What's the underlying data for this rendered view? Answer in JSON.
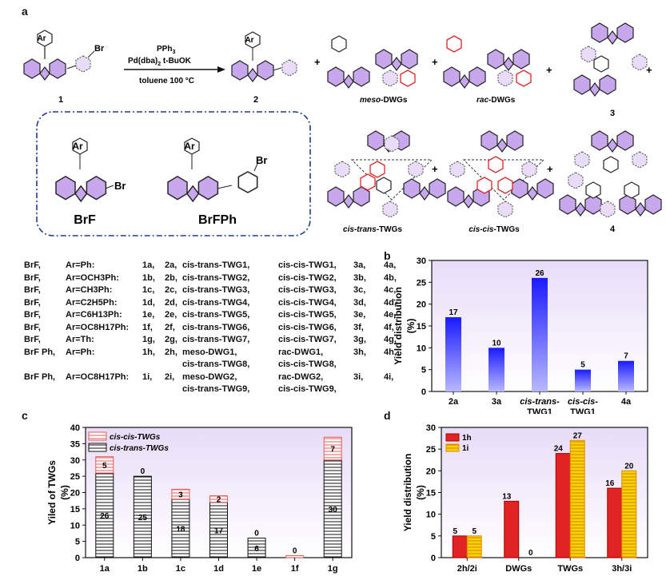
{
  "panel_labels": {
    "a": "a",
    "b": "b",
    "c": "c",
    "d": "d"
  },
  "scheme": {
    "compound_1": "1",
    "compound_2": "2",
    "compound_3": "3",
    "compound_4": "4",
    "reagent_line1": "PPh",
    "reagent_line1_sub": "3",
    "reagent_line2_a": "Pd(dba)",
    "reagent_line2_sub": "2",
    "reagent_line2_b": " t-BuOK",
    "reagent_line3": "toluene 100 °C",
    "ar_label": "Ar",
    "br_label": "Br",
    "plus": "+",
    "meso_dwgs_prefix": "meso",
    "meso_dwgs_suffix": "-DWGs",
    "rac_dwgs_prefix": "rac",
    "rac_dwgs_suffix": "-DWGs",
    "cis_trans_twgs_prefix": "cis-trans",
    "cis_trans_twgs_suffix": "-TWGs",
    "cis_cis_twgs_prefix": "cis-cis",
    "cis_cis_twgs_suffix": "-TWGs",
    "brf": "BrF",
    "brfph": "BrFPh"
  },
  "table_rows": [
    {
      "prefix": "BrF,",
      "ar": "Ar=Ph:",
      "c1": "1a,",
      "c2": "2a,",
      "c3": "cis-trans-TWG1,",
      "c4": "cis-cis-TWG1,",
      "c5": "3a,",
      "c6": "4a,"
    },
    {
      "prefix": "BrF,",
      "ar": "Ar=OCH3Ph:",
      "c1": "1b,",
      "c2": "2b,",
      "c3": "cis-trans-TWG2,",
      "c4": "cis-cis-TWG2,",
      "c5": "3b,",
      "c6": "4b,"
    },
    {
      "prefix": "BrF,",
      "ar": "Ar=CH3Ph:",
      "c1": "1c,",
      "c2": "2c,",
      "c3": "cis-trans-TWG3,",
      "c4": "cis-cis-TWG3,",
      "c5": "3c,",
      "c6": "4c,"
    },
    {
      "prefix": "BrF,",
      "ar": "Ar=C2H5Ph:",
      "c1": "1d,",
      "c2": "2d,",
      "c3": "cis-trans-TWG4,",
      "c4": "cis-cis-TWG4,",
      "c5": "3d,",
      "c6": "4d,"
    },
    {
      "prefix": "BrF,",
      "ar": "Ar=C6H13Ph:",
      "c1": "1e,",
      "c2": "2e,",
      "c3": "cis-trans-TWG5,",
      "c4": "cis-cis-TWG5,",
      "c5": "3e,",
      "c6": "4e,"
    },
    {
      "prefix": "BrF,",
      "ar": "Ar=OC8H17Ph:",
      "c1": "1f,",
      "c2": "2f,",
      "c3": "cis-trans-TWG6,",
      "c4": "cis-cis-TWG6,",
      "c5": "3f,",
      "c6": "4f,"
    },
    {
      "prefix": "BrF,",
      "ar": "Ar=Th:",
      "c1": "1g,",
      "c2": "2g,",
      "c3": "cis-trans-TWG7,",
      "c4": "cis-cis-TWG7,",
      "c5": "3g,",
      "c6": "4g,"
    },
    {
      "prefix": "BrF Ph,",
      "ar": "Ar=Ph:",
      "c1": "1h,",
      "c2": "2h,",
      "c3": "meso-DWG1,",
      "c4": "rac-DWG1,",
      "c5": "3h,",
      "c6": "4h,",
      "sub3": "cis-trans-TWG8,",
      "sub4": "cis-cis-TWG8,"
    },
    {
      "prefix": "BrF Ph,",
      "ar": "Ar=OC8H17Ph:",
      "c1": "1i,",
      "c2": "2i,",
      "c3": "meso-DWG2,",
      "c4": "rac-DWG2,",
      "c5": "3i,",
      "c6": "4i,",
      "sub3": "cis-trans-TWG9,",
      "sub4": "cis-cis-TWG9,"
    }
  ],
  "chart_data": [
    {
      "type": "bar",
      "panel": "b",
      "ylabel": "Yield distribution (%)",
      "ylabel_line1": "Yield distribution",
      "ylabel_line2": "(%)",
      "ylim": [
        0,
        30
      ],
      "yticks": [
        "0",
        "5",
        "10",
        "15",
        "20",
        "25",
        "30"
      ],
      "categories": [
        "2a",
        "3a",
        "cis-trans-TWG1",
        "cis-cis-TWG1",
        "4a"
      ],
      "cat_line1": [
        "2a",
        "3a",
        "cis-trans-",
        "cis-cis-",
        "4a"
      ],
      "cat_line2": [
        "",
        "",
        "TWG1",
        "TWG1",
        ""
      ],
      "values": [
        17,
        10,
        26,
        5,
        7
      ],
      "value_labels": [
        "17",
        "10",
        "26",
        "5",
        "7"
      ]
    },
    {
      "type": "bar",
      "panel": "c",
      "stacked": true,
      "ylabel": "Yiled of TWGs (%)",
      "ylabel_line1": "Yiled of TWGs",
      "ylabel_line2": "(%)",
      "ylim": [
        0,
        40
      ],
      "yticks": [
        "0",
        "5",
        "10",
        "15",
        "20",
        "25",
        "30",
        "35",
        "40"
      ],
      "categories": [
        "1a",
        "1b",
        "1c",
        "1d",
        "1e",
        "1f",
        "1g"
      ],
      "legend": [
        "cis-cis-TWGs",
        "cis-trans-TWGs"
      ],
      "series": [
        {
          "name": "cis-trans-TWGs",
          "values": [
            26,
            25,
            18,
            17,
            6,
            0,
            30
          ],
          "labels": [
            "26",
            "25",
            "18",
            "17",
            "6",
            "",
            "30"
          ]
        },
        {
          "name": "cis-cis-TWGs",
          "values": [
            5,
            0,
            3,
            2,
            0,
            0,
            7
          ],
          "labels": [
            "5",
            "0",
            "3",
            "2",
            "0",
            "0",
            "7"
          ]
        }
      ]
    },
    {
      "type": "bar",
      "panel": "d",
      "ylabel": "Yield distribution (%)",
      "ylabel_line1": "Yield distribution",
      "ylabel_line2": "(%)",
      "ylim": [
        0,
        30
      ],
      "yticks": [
        "0",
        "5",
        "10",
        "15",
        "20",
        "25",
        "30"
      ],
      "categories": [
        "2h/2i",
        "DWGs",
        "TWGs",
        "3h/3i"
      ],
      "legend": [
        "1h",
        "1i"
      ],
      "series": [
        {
          "name": "1h",
          "values": [
            5,
            13,
            24,
            16
          ],
          "labels": [
            "5",
            "13",
            "24",
            "16"
          ]
        },
        {
          "name": "1i",
          "values": [
            5,
            0,
            27,
            20
          ],
          "labels": [
            "5",
            "0",
            "27",
            "20"
          ]
        }
      ]
    }
  ],
  "colors": {
    "blue_dark": "#1a1aff",
    "blue_light": "#b8b8ff",
    "red": "#e02424",
    "red_hatch": "#e8595a",
    "yellow": "#f5d400",
    "purple": "#c8a8ec",
    "grad_top": "#e8dcf8"
  }
}
